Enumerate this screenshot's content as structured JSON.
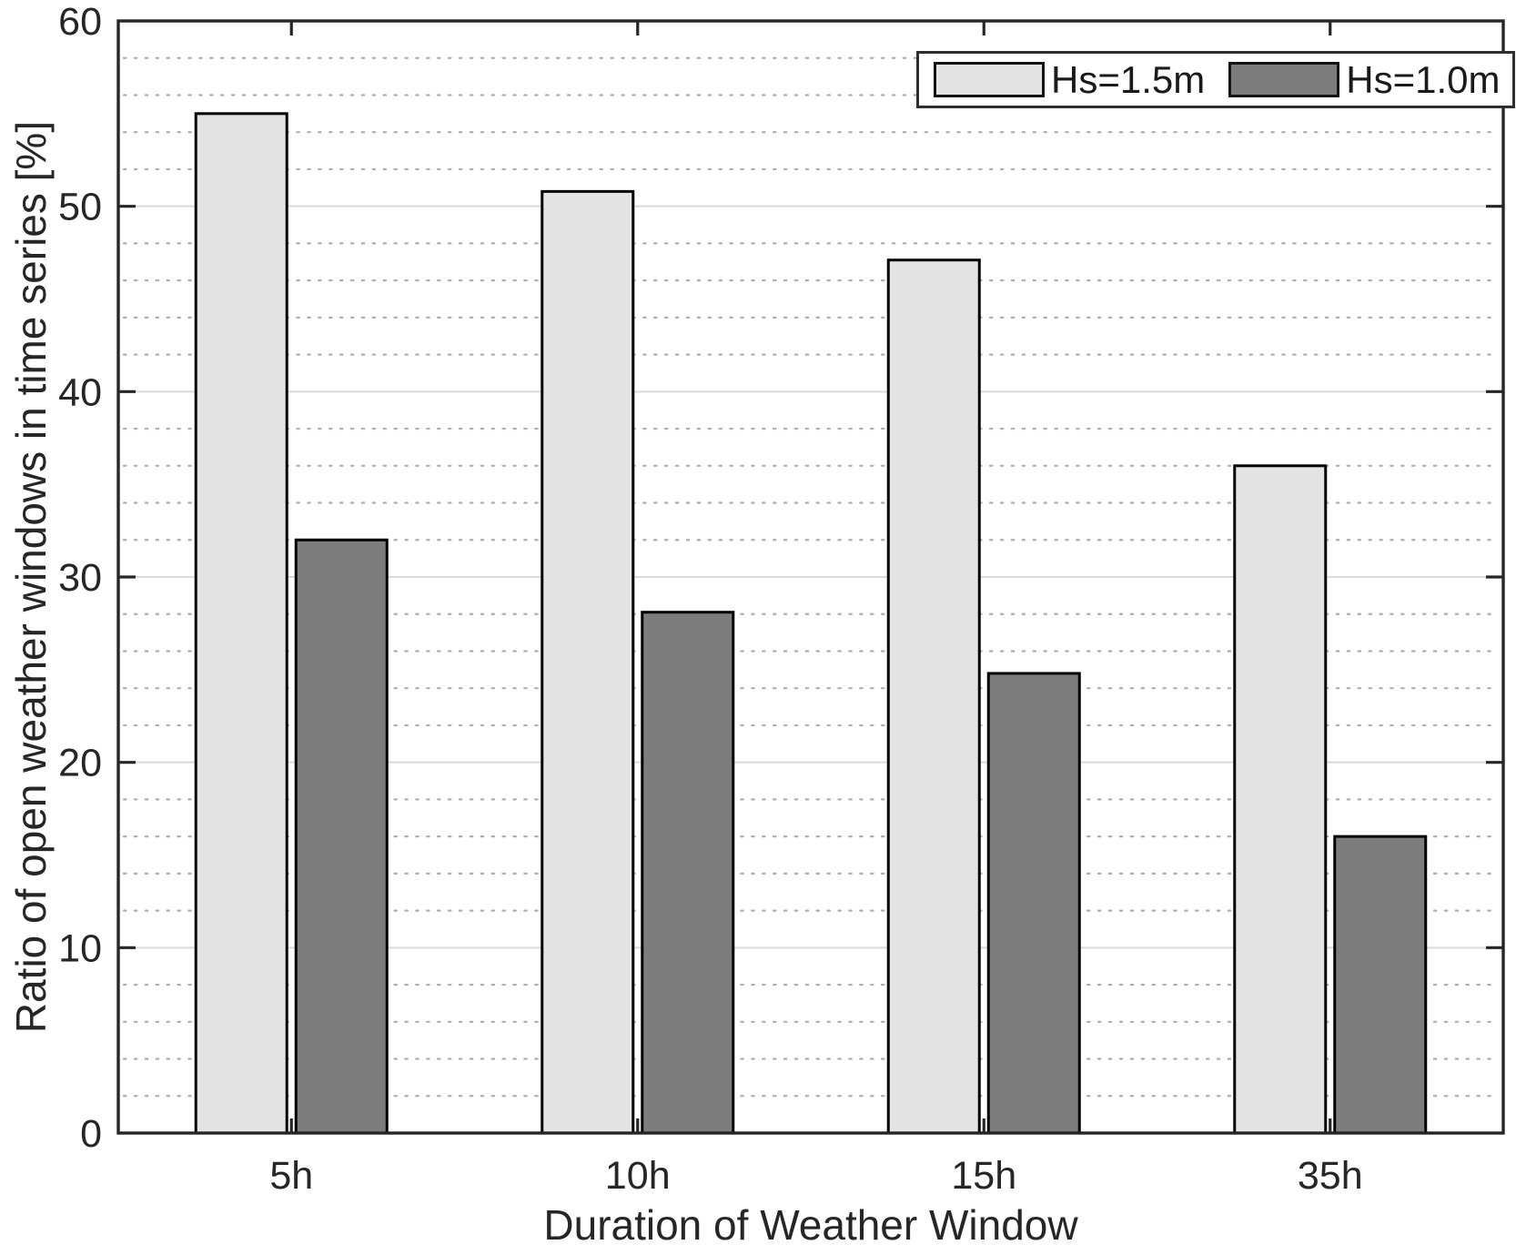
{
  "chart_data": {
    "type": "bar",
    "title": "",
    "xlabel": "Duration of Weather Window",
    "ylabel": "Ratio of open weather windows in time series [%]",
    "categories": [
      "5h",
      "10h",
      "15h",
      "35h"
    ],
    "series": [
      {
        "name": "Hs=1.5m",
        "color": "#e4e4e4",
        "values": [
          55,
          50.8,
          47.1,
          36
        ]
      },
      {
        "name": "Hs=1.0m",
        "color": "#7d7d7d",
        "values": [
          32,
          28.1,
          24.8,
          16
        ]
      }
    ],
    "ylim": [
      0,
      60
    ],
    "ytick_step": 10,
    "ytick_labels": [
      "0",
      "10",
      "20",
      "30",
      "40",
      "50",
      "60"
    ],
    "yminor_step": 2,
    "grid": "horizontal only: solid light major lines every 10, dotted minor lines every 2",
    "legend_position": "top-right inside plot",
    "bar_edge_color": "#000000",
    "axis_box_color": "#262626",
    "major_grid_color": "#d9d9d9",
    "minor_grid_color": "#aeaeae",
    "text_color": "#262626"
  }
}
